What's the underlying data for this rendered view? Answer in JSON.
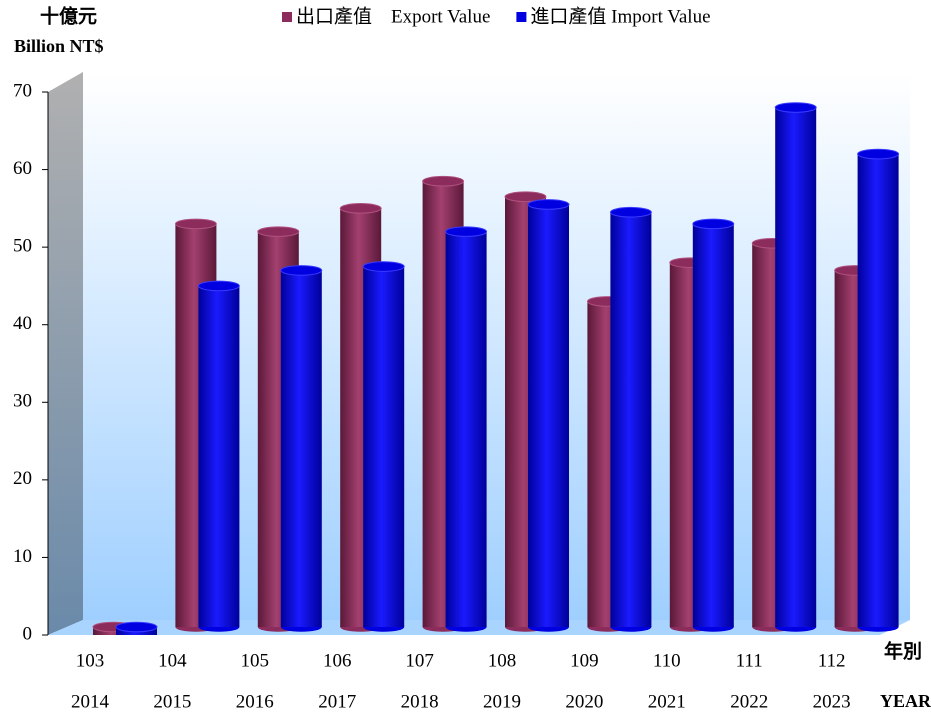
{
  "chart_data": {
    "type": "bar",
    "y_label": "十億元",
    "y_unit": "Billion NT$",
    "x_label": "年別",
    "x_label_en": "YEAR",
    "categories": [
      "103",
      "104",
      "105",
      "106",
      "107",
      "108",
      "109",
      "110",
      "111",
      "112"
    ],
    "categories_ad": [
      "2014",
      "2015",
      "2016",
      "2017",
      "2018",
      "2019",
      "2020",
      "2021",
      "2022",
      "2023"
    ],
    "series": [
      {
        "name": "出口產值　Export Value",
        "color": "#8b2c5c",
        "values": [
          0,
          53,
          52,
          55,
          58.5,
          56.5,
          43,
          48,
          50.5,
          47
        ]
      },
      {
        "name": "進口產值 Import Value",
        "color": "#0000e0",
        "values": [
          0,
          45,
          47,
          47.5,
          52,
          55.5,
          54.5,
          53,
          68,
          62
        ]
      }
    ],
    "ylim": [
      0,
      70
    ],
    "yticks": [
      0,
      10,
      20,
      30,
      40,
      50,
      60,
      70
    ],
    "grid": false,
    "legend": "top"
  }
}
